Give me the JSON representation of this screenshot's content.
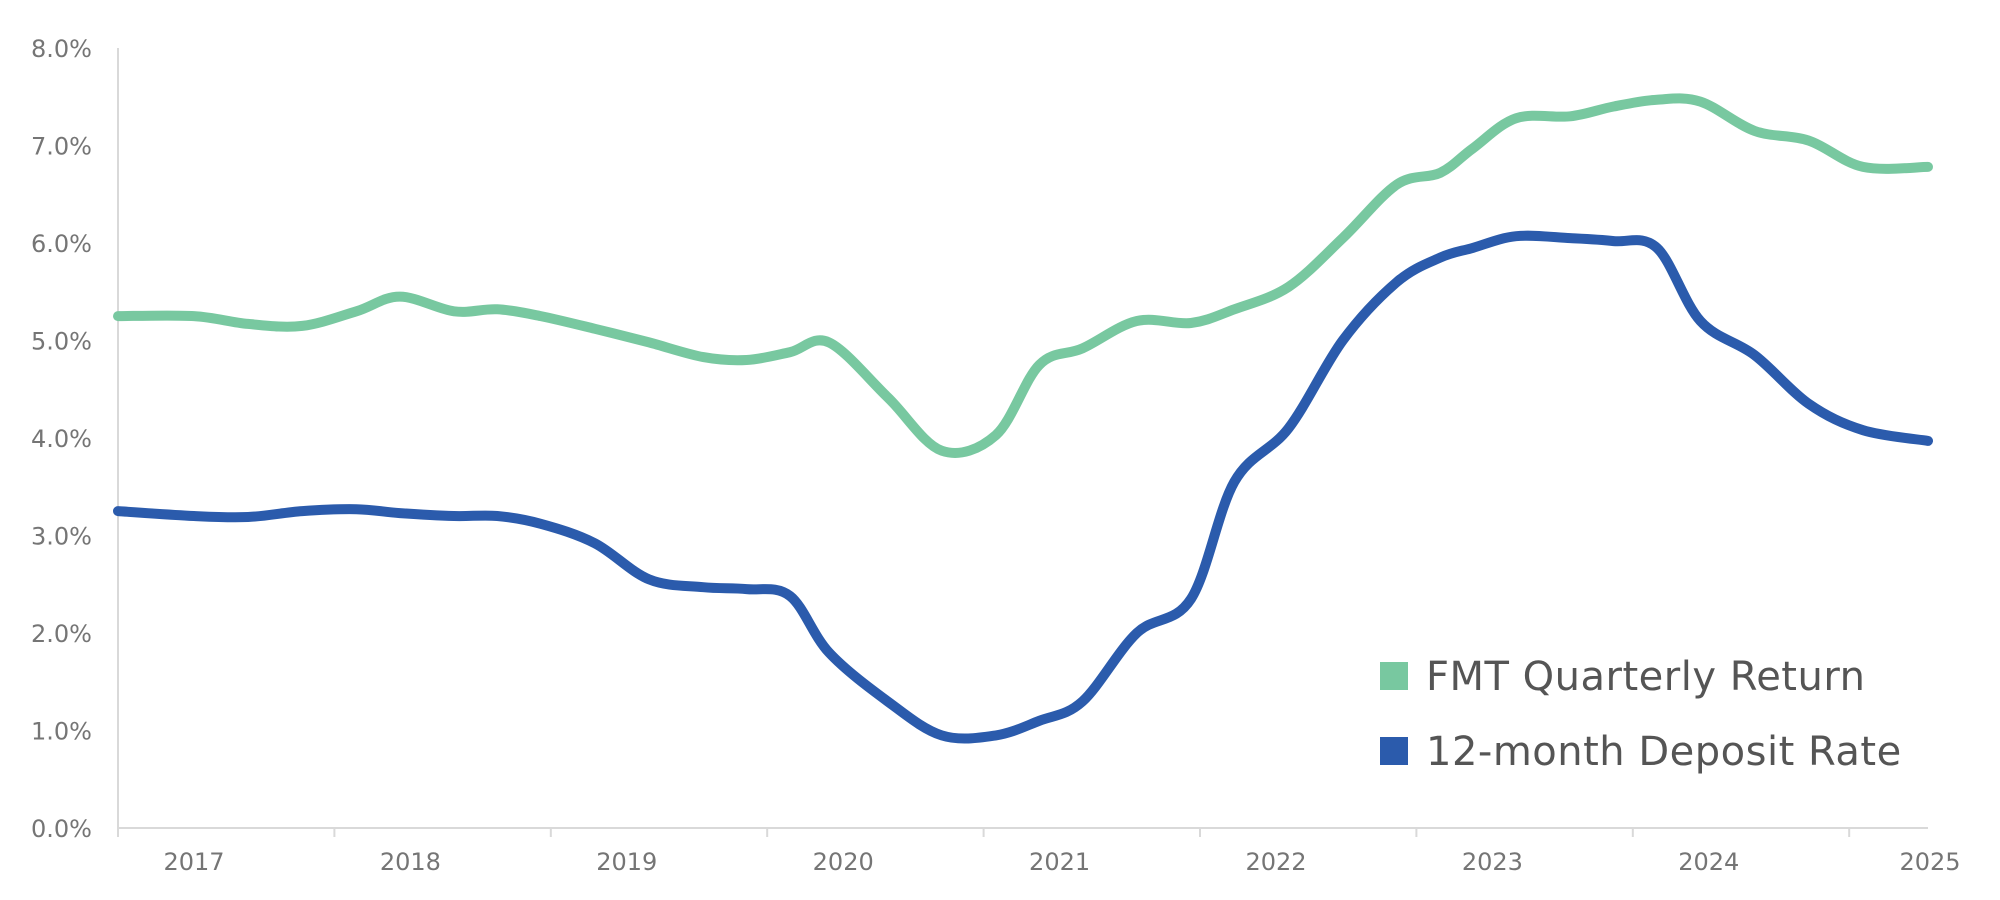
{
  "chart_data": {
    "type": "line",
    "title": "",
    "xlabel": "",
    "ylabel": "",
    "x_ticks": [
      "2017",
      "2018",
      "2019",
      "2020",
      "2021",
      "2022",
      "2023",
      "2024",
      "2025"
    ],
    "y_ticks": [
      "0.0%",
      "1.0%",
      "2.0%",
      "3.0%",
      "4.0%",
      "5.0%",
      "6.0%",
      "7.0%",
      "8.0%"
    ],
    "xlim": [
      2016.65,
      2025.0
    ],
    "ylim": [
      0,
      8
    ],
    "grid": false,
    "legend_position": "bottom-right",
    "series": [
      {
        "name": "FMT Quarterly Return",
        "color": "#78c8a0",
        "x": [
          2016.65,
          2017.0,
          2017.25,
          2017.5,
          2017.75,
          2017.95,
          2018.2,
          2018.4,
          2018.6,
          2018.85,
          2019.1,
          2019.35,
          2019.55,
          2019.75,
          2019.93,
          2020.2,
          2020.45,
          2020.7,
          2020.9,
          2021.1,
          2021.35,
          2021.6,
          2021.8,
          2022.05,
          2022.3,
          2022.55,
          2022.75,
          2022.9,
          2023.1,
          2023.35,
          2023.55,
          2023.75,
          2023.95,
          2024.2,
          2024.45,
          2024.7,
          2025.0
        ],
        "y": [
          5.25,
          5.25,
          5.17,
          5.15,
          5.3,
          5.45,
          5.3,
          5.32,
          5.25,
          5.12,
          4.98,
          4.83,
          4.8,
          4.88,
          4.98,
          4.42,
          3.87,
          4.03,
          4.75,
          4.92,
          5.2,
          5.18,
          5.32,
          5.55,
          6.05,
          6.6,
          6.72,
          6.97,
          7.28,
          7.3,
          7.4,
          7.47,
          7.45,
          7.15,
          7.05,
          6.78,
          6.78
        ]
      },
      {
        "name": "12-month Deposit Rate",
        "color": "#2b5bac",
        "x": [
          2016.65,
          2017.0,
          2017.25,
          2017.5,
          2017.75,
          2017.95,
          2018.2,
          2018.4,
          2018.6,
          2018.85,
          2019.1,
          2019.35,
          2019.55,
          2019.75,
          2019.93,
          2020.2,
          2020.45,
          2020.7,
          2020.9,
          2021.1,
          2021.35,
          2021.6,
          2021.8,
          2022.05,
          2022.3,
          2022.55,
          2022.75,
          2022.9,
          2023.1,
          2023.35,
          2023.55,
          2023.75,
          2023.95,
          2024.2,
          2024.45,
          2024.7,
          2025.0
        ],
        "y": [
          3.25,
          3.2,
          3.19,
          3.25,
          3.27,
          3.23,
          3.2,
          3.2,
          3.12,
          2.92,
          2.55,
          2.47,
          2.45,
          2.38,
          1.8,
          1.3,
          0.95,
          0.95,
          1.1,
          1.3,
          2.0,
          2.35,
          3.55,
          4.1,
          5.0,
          5.6,
          5.85,
          5.95,
          6.07,
          6.05,
          6.02,
          5.95,
          5.2,
          4.85,
          4.35,
          4.08,
          3.97
        ]
      }
    ]
  }
}
